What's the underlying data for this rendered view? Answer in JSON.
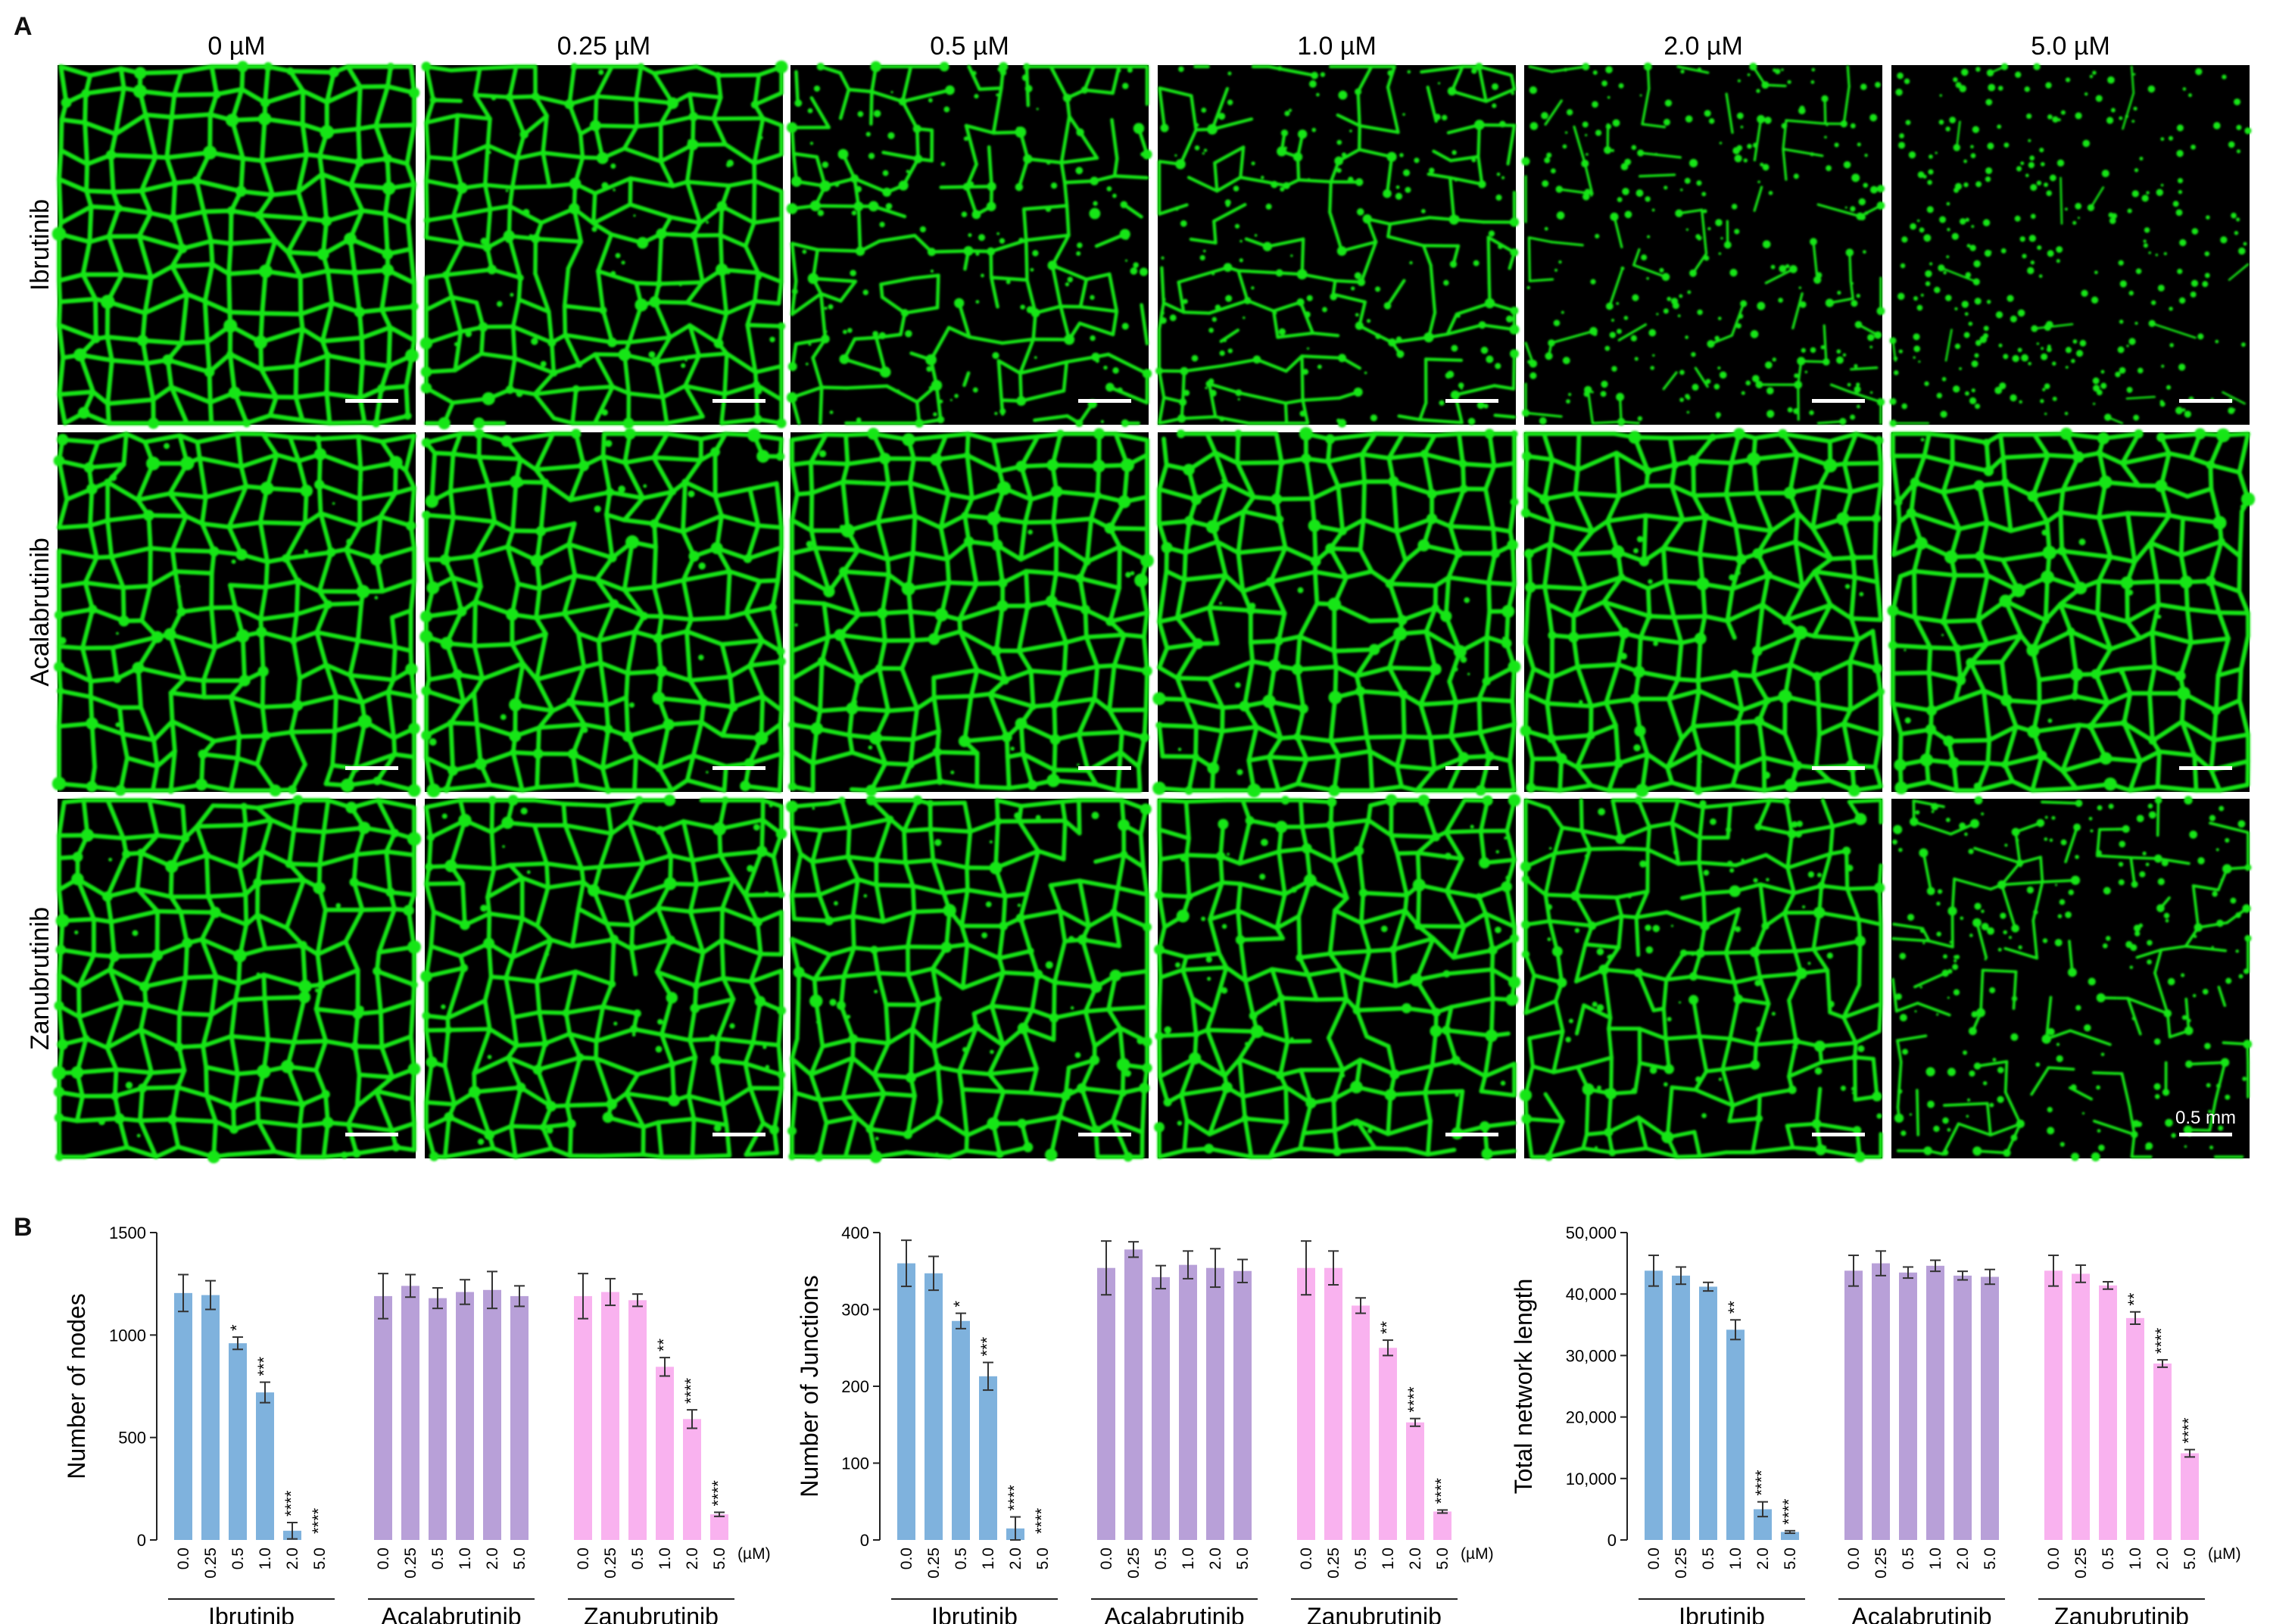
{
  "figure": {
    "panel_a_letter": "A",
    "panel_b_letter": "B",
    "scale_bar_label": "0.5 mm"
  },
  "panel_a": {
    "concentrations": [
      "0 µM",
      "0.25 µM",
      "0.5 µM",
      "1.0 µM",
      "2.0 µM",
      "5.0 µM"
    ],
    "drugs": [
      "Ibrutinib",
      "Acalabrutinib",
      "Zanubrutinib"
    ],
    "network_color": "#19e619",
    "background_color": "#000000",
    "tile_density": [
      [
        1.0,
        0.85,
        0.6,
        0.5,
        0.22,
        0.05
      ],
      [
        0.95,
        0.95,
        0.95,
        0.95,
        0.95,
        0.95
      ],
      [
        0.95,
        0.9,
        0.9,
        0.88,
        0.75,
        0.35
      ]
    ]
  },
  "colors": {
    "Ibrutinib": "#7fb2dd",
    "Acalabrutinib": "#b8a0d8",
    "Zanubrutinib": "#f9b2ef"
  },
  "chart_data": [
    {
      "type": "bar",
      "ylabel": "Number of nodes",
      "ylim": [
        0,
        1500
      ],
      "yticks": [
        0,
        500,
        1000,
        1500
      ],
      "ytick_labels": [
        "0",
        "500",
        "1000",
        "1500"
      ],
      "categories": [
        "0.0",
        "0.25",
        "0.5",
        "1.0",
        "2.0",
        "5.0"
      ],
      "unit_label": "(µM)",
      "series": [
        {
          "name": "Ibrutinib",
          "values": [
            1205,
            1195,
            960,
            720,
            45,
            0
          ],
          "errors": [
            90,
            70,
            30,
            50,
            40,
            0
          ],
          "sig": [
            "",
            "",
            "*",
            "***",
            "****",
            "****"
          ]
        },
        {
          "name": "Acalabrutinib",
          "values": [
            1190,
            1240,
            1180,
            1210,
            1220,
            1190
          ],
          "errors": [
            110,
            55,
            50,
            60,
            90,
            50
          ],
          "sig": [
            "",
            "",
            "",
            "",
            "",
            ""
          ]
        },
        {
          "name": "Zanubrutinib",
          "values": [
            1190,
            1210,
            1170,
            845,
            590,
            125
          ],
          "errors": [
            110,
            65,
            30,
            45,
            45,
            10
          ],
          "sig": [
            "",
            "",
            "",
            "**",
            "****",
            "****"
          ]
        }
      ]
    },
    {
      "type": "bar",
      "ylabel": "Number of Junctions",
      "ylim": [
        0,
        400
      ],
      "yticks": [
        0,
        100,
        200,
        300,
        400
      ],
      "ytick_labels": [
        "0",
        "100",
        "200",
        "300",
        "400"
      ],
      "categories": [
        "0.0",
        "0.25",
        "0.5",
        "1.0",
        "2.0",
        "5.0"
      ],
      "unit_label": "(µM)",
      "series": [
        {
          "name": "Ibrutinib",
          "values": [
            360,
            347,
            285,
            213,
            15,
            0
          ],
          "errors": [
            30,
            22,
            10,
            18,
            15,
            0
          ],
          "sig": [
            "",
            "",
            "*",
            "***",
            "****",
            "****"
          ]
        },
        {
          "name": "Acalabrutinib",
          "values": [
            354,
            378,
            342,
            358,
            354,
            350
          ],
          "errors": [
            35,
            10,
            15,
            18,
            25,
            15
          ],
          "sig": [
            "",
            "",
            "",
            "",
            "",
            ""
          ]
        },
        {
          "name": "Zanubrutinib",
          "values": [
            354,
            354,
            305,
            250,
            153,
            37
          ],
          "errors": [
            35,
            22,
            10,
            10,
            5,
            2
          ],
          "sig": [
            "",
            "",
            "",
            "**",
            "****",
            "****"
          ]
        }
      ]
    },
    {
      "type": "bar",
      "ylabel": "Total network length",
      "ylim": [
        0,
        50000
      ],
      "yticks": [
        0,
        10000,
        20000,
        30000,
        40000,
        50000
      ],
      "ytick_labels": [
        "0",
        "10,000",
        "20,000",
        "30,000",
        "40,000",
        "50,000"
      ],
      "categories": [
        "0.0",
        "0.25",
        "0.5",
        "1.0",
        "2.0",
        "5.0"
      ],
      "unit_label": "(µM)",
      "series": [
        {
          "name": "Ibrutinib",
          "values": [
            43800,
            43000,
            41200,
            34200,
            5000,
            1300
          ],
          "errors": [
            2500,
            1400,
            700,
            1600,
            1200,
            200
          ],
          "sig": [
            "",
            "",
            "",
            "**",
            "****",
            "****"
          ]
        },
        {
          "name": "Acalabrutinib",
          "values": [
            43800,
            45000,
            43500,
            44600,
            43000,
            42800
          ],
          "errors": [
            2500,
            2000,
            900,
            900,
            700,
            1200
          ],
          "sig": [
            "",
            "",
            "",
            "",
            "",
            ""
          ]
        },
        {
          "name": "Zanubrutinib",
          "values": [
            43800,
            43300,
            41400,
            36100,
            28700,
            14100
          ],
          "errors": [
            2500,
            1400,
            600,
            1000,
            600,
            600
          ],
          "sig": [
            "",
            "",
            "",
            "**",
            "****",
            "****"
          ]
        }
      ]
    }
  ]
}
